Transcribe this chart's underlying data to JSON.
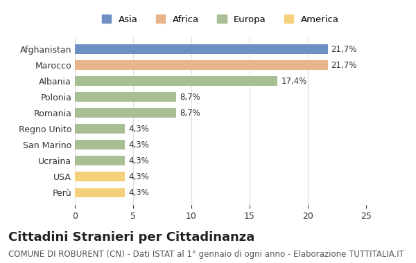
{
  "categories": [
    "Afghanistan",
    "Marocco",
    "Albania",
    "Polonia",
    "Romania",
    "Regno Unito",
    "San Marino",
    "Ucraina",
    "USA",
    "Perù"
  ],
  "values": [
    21.7,
    21.7,
    17.4,
    8.7,
    8.7,
    4.3,
    4.3,
    4.3,
    4.3,
    4.3
  ],
  "labels": [
    "21,7%",
    "21,7%",
    "17,4%",
    "8,7%",
    "8,7%",
    "4,3%",
    "4,3%",
    "4,3%",
    "4,3%",
    "4,3%"
  ],
  "bar_colors": [
    "#6e8fc4",
    "#e8b48a",
    "#a8bf94",
    "#a8bf94",
    "#a8bf94",
    "#a8bf94",
    "#a8bf94",
    "#a8bf94",
    "#f5d07a",
    "#f5d07a"
  ],
  "legend_labels": [
    "Asia",
    "Africa",
    "Europa",
    "America"
  ],
  "legend_colors": [
    "#6e8fc4",
    "#e8b48a",
    "#a8bf94",
    "#f5d07a"
  ],
  "xlim": [
    0,
    25
  ],
  "xticks": [
    0,
    5,
    10,
    15,
    20,
    25
  ],
  "title": "Cittadini Stranieri per Cittadinanza",
  "subtitle": "COMUNE DI ROBURENT (CN) - Dati ISTAT al 1° gennaio di ogni anno - Elaborazione TUTTITALIA.IT",
  "background_color": "#ffffff",
  "grid_color": "#dddddd",
  "title_fontsize": 13,
  "subtitle_fontsize": 8.5,
  "label_fontsize": 8.5,
  "tick_fontsize": 9
}
